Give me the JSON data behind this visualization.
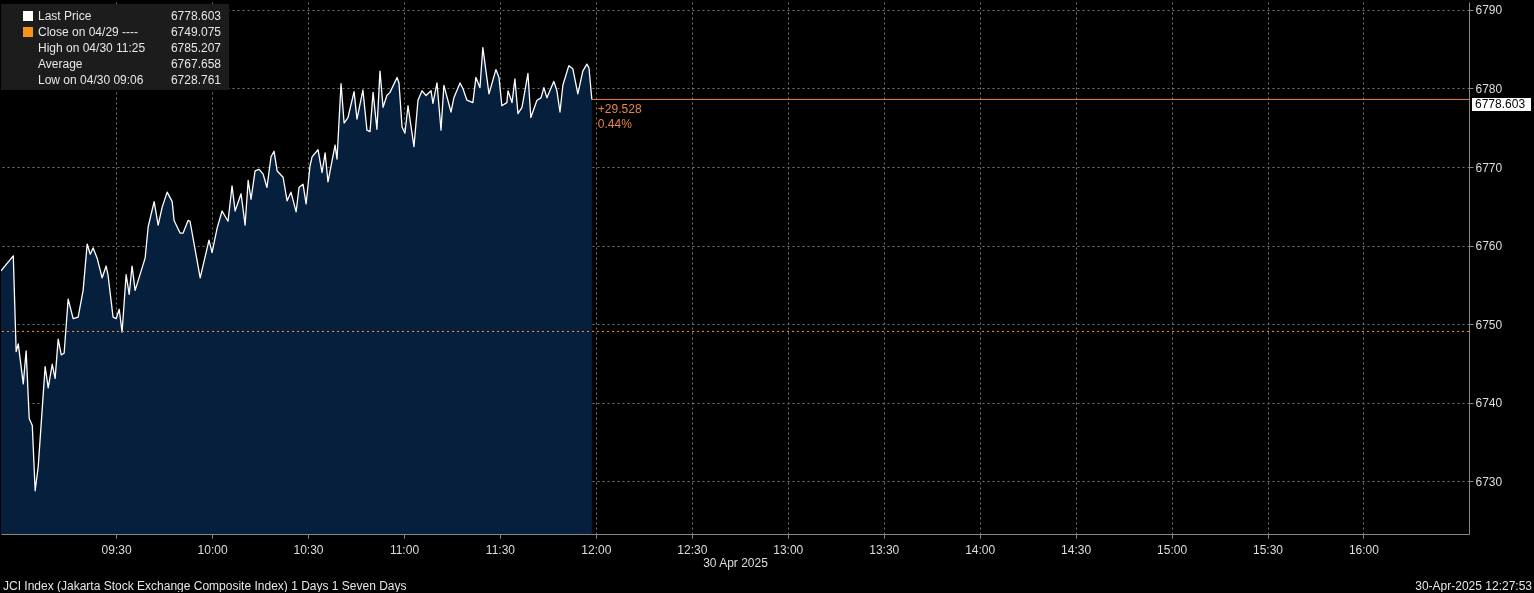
{
  "chart_data": {
    "type": "area",
    "x": [
      8.9,
      8.964,
      8.979,
      8.99,
      9.016,
      9.031,
      9.047,
      9.063,
      9.078,
      9.094,
      9.13,
      9.146,
      9.167,
      9.182,
      9.198,
      9.214,
      9.229,
      9.25,
      9.276,
      9.302,
      9.328,
      9.349,
      9.365,
      9.38,
      9.401,
      9.427,
      9.448,
      9.458,
      9.484,
      9.5,
      9.516,
      9.531,
      9.552,
      9.568,
      9.583,
      9.599,
      9.651,
      9.667,
      9.698,
      9.719,
      9.74,
      9.766,
      9.792,
      9.802,
      9.833,
      9.849,
      9.875,
      9.885,
      9.938,
      9.984,
      10.0,
      10.026,
      10.052,
      10.083,
      10.104,
      10.12,
      10.151,
      10.172,
      10.188,
      10.203,
      10.224,
      10.245,
      10.266,
      10.286,
      10.307,
      10.323,
      10.339,
      10.37,
      10.391,
      10.411,
      10.438,
      10.453,
      10.474,
      10.49,
      10.51,
      10.521,
      10.552,
      10.573,
      10.589,
      10.604,
      10.641,
      10.651,
      10.672,
      10.688,
      10.708,
      10.74,
      10.755,
      10.786,
      10.807,
      10.823,
      10.839,
      10.859,
      10.875,
      10.891,
      10.911,
      10.927,
      10.964,
      10.974,
      10.99,
      11.005,
      11.021,
      11.052,
      11.073,
      11.094,
      11.115,
      11.141,
      11.151,
      11.172,
      11.193,
      11.208,
      11.245,
      11.26,
      11.292,
      11.307,
      11.328,
      11.359,
      11.375,
      11.396,
      11.411,
      11.443,
      11.479,
      11.495,
      11.51,
      11.536,
      11.542,
      11.563,
      11.578,
      11.594,
      11.615,
      11.646,
      11.661,
      11.693,
      11.714,
      11.729,
      11.745,
      11.781,
      11.797,
      11.813,
      11.828,
      11.859,
      11.88,
      11.906,
      11.932,
      11.953,
      11.964,
      11.979
    ],
    "series": [
      {
        "name": "Last Price",
        "color": "#ffffff",
        "values": [
          6756.8,
          6758.7,
          6746.5,
          6747.5,
          6742.4,
          6746.6,
          6738.0,
          6737.1,
          6728.8,
          6731.9,
          6744.6,
          6741.9,
          6744.9,
          6743.1,
          6748.1,
          6746.1,
          6746.3,
          6753.2,
          6750.7,
          6750.9,
          6754.3,
          6760.2,
          6758.9,
          6759.7,
          6758.4,
          6755.9,
          6757.4,
          6756.2,
          6750.9,
          6750.7,
          6751.9,
          6749.0,
          6756.3,
          6753.8,
          6757.4,
          6754.3,
          6758.4,
          6762.4,
          6765.6,
          6762.6,
          6764.9,
          6766.8,
          6765.6,
          6763.2,
          6761.6,
          6761.6,
          6763.2,
          6763.1,
          6755.9,
          6760.7,
          6759.1,
          6762.2,
          6764.4,
          6763.1,
          6767.6,
          6764.4,
          6766.6,
          6762.6,
          6768.3,
          6765.9,
          6769.5,
          6769.7,
          6769.1,
          6767.4,
          6771.3,
          6772.0,
          6769.5,
          6768.7,
          6765.7,
          6766.8,
          6764.3,
          6767.4,
          6767.8,
          6765.3,
          6770.1,
          6771.3,
          6772.2,
          6769.3,
          6771.8,
          6768.1,
          6772.8,
          6771.0,
          6780.6,
          6775.6,
          6776.3,
          6779.6,
          6776.1,
          6779.8,
          6774.7,
          6774.5,
          6779.5,
          6774.8,
          6782.2,
          6777.6,
          6779.1,
          6779.5,
          6781.4,
          6780.7,
          6775.1,
          6774.3,
          6777.8,
          6772.6,
          6778.5,
          6779.7,
          6779.1,
          6779.7,
          6778.1,
          6780.7,
          6774.7,
          6780.4,
          6777.0,
          6778.8,
          6780.7,
          6780.0,
          6778.5,
          6778.2,
          6781.4,
          6780.1,
          6785.2,
          6779.3,
          6782.4,
          6781.4,
          6777.8,
          6778.2,
          6779.7,
          6778.2,
          6781.2,
          6776.8,
          6777.6,
          6781.9,
          6776.3,
          6778.5,
          6778.8,
          6780.1,
          6778.8,
          6780.9,
          6779.7,
          6777.0,
          6780.4,
          6782.9,
          6782.5,
          6779.3,
          6782.2,
          6783.1,
          6782.6,
          6778.6
        ]
      }
    ],
    "xlabel": "30 Apr 2025",
    "xlim": [
      8.9,
      16.55
    ],
    "xticks": [
      {
        "value": 9.5,
        "label": "09:30"
      },
      {
        "value": 10,
        "label": "10:00"
      },
      {
        "value": 10.5,
        "label": "10:30"
      },
      {
        "value": 11,
        "label": "11:00"
      },
      {
        "value": 11.5,
        "label": "11:30"
      },
      {
        "value": 12,
        "label": "12:00"
      },
      {
        "value": 12.5,
        "label": "12:30"
      },
      {
        "value": 13,
        "label": "13:00"
      },
      {
        "value": 13.5,
        "label": "13:30"
      },
      {
        "value": 14,
        "label": "14:00"
      },
      {
        "value": 14.5,
        "label": "14:30"
      },
      {
        "value": 15,
        "label": "15:00"
      },
      {
        "value": 15.5,
        "label": "15:30"
      },
      {
        "value": 16,
        "label": "16:00"
      }
    ],
    "ylim": [
      6723.3,
      6791
    ],
    "yticks": [
      6730,
      6740,
      6750,
      6760,
      6770,
      6780,
      6790
    ],
    "grid": true,
    "legend": "top left",
    "ref_lines": [
      {
        "axis": "y",
        "value": 6778.603,
        "label": "6778.603",
        "color": "#e8834a",
        "line_style": "solid"
      },
      {
        "axis": "y",
        "value": 6749.075,
        "color": "#f7941d",
        "line_style": "dotted"
      }
    ],
    "annotations": [
      "6778.603",
      "Close on 04/29 ----",
      "6749.075",
      "High on 04/30 11:25",
      "6785.207",
      "Average",
      "6767.658",
      "Low on 04/30 09:06",
      "6728.761",
      {
        "text": "+29.528",
        "x": 11.979,
        "y": 6778.603
      },
      {
        "text": "0.44%",
        "x": 11.979,
        "y": 6778.603
      },
      "JCI Index (Jakarta Stock Exchange Composite Index) 1 Days 1 Seven Days",
      "30-Apr-2025 12:27:53"
    ]
  }
}
